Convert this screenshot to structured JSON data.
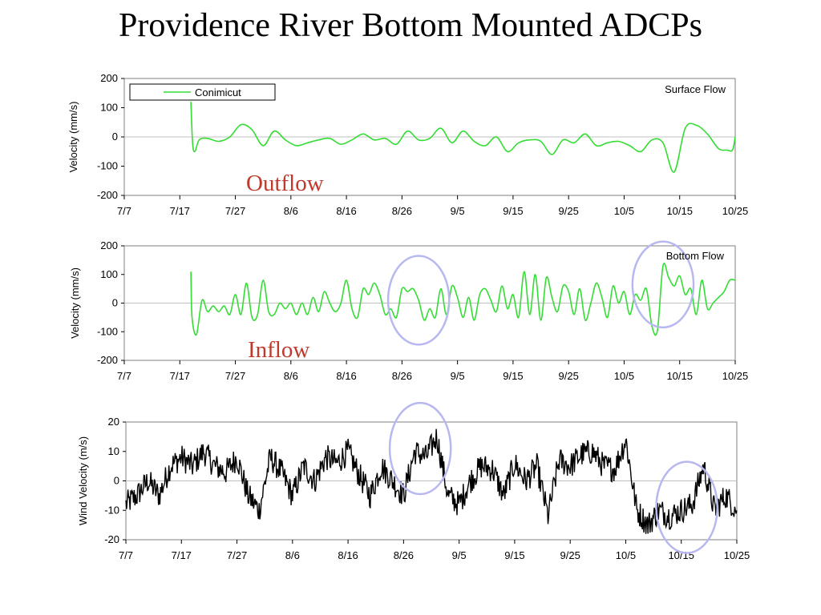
{
  "page": {
    "title": "Providence River Bottom Mounted ADCPs"
  },
  "colors": {
    "current": "#33dd33",
    "wind": "#000000",
    "highlight": "#b8b8f0",
    "label": "#c0392b"
  },
  "chart_data": [
    {
      "id": "surface",
      "type": "line",
      "title": "",
      "xlabel": "",
      "ylabel": "Velocity (mm/s)",
      "x_ticks": [
        "7/7",
        "7/17",
        "7/27",
        "8/6",
        "8/16",
        "8/26",
        "9/5",
        "9/15",
        "9/25",
        "10/5",
        "10/15",
        "10/25"
      ],
      "ylim": [
        -200,
        200
      ],
      "y_ticks": [
        200,
        100,
        0,
        -100,
        -200
      ],
      "corner_note": "Surface Flow",
      "annotation": "Outflow",
      "legend": {
        "entries": [
          "Conimicut"
        ],
        "position": "top-left"
      },
      "series": [
        {
          "name": "Conimicut",
          "x_days": [
            12.0,
            12.3,
            12.7,
            13.5,
            15,
            17,
            19,
            21,
            23,
            25,
            27,
            29,
            31,
            33,
            35,
            37,
            39,
            41,
            43,
            45,
            47,
            49,
            51,
            53,
            55,
            57,
            59,
            61,
            63,
            65,
            67,
            69,
            71,
            73,
            75,
            77,
            79,
            81,
            83,
            85,
            87,
            89,
            91,
            93,
            95,
            97,
            99,
            101,
            103,
            105,
            107,
            108.5,
            109.5,
            110
          ],
          "y": [
            120,
            -20,
            -50,
            -10,
            -5,
            -15,
            0,
            42,
            25,
            -30,
            20,
            -10,
            -30,
            -20,
            -10,
            -5,
            -25,
            -10,
            10,
            -10,
            -5,
            -25,
            20,
            -10,
            -5,
            30,
            -20,
            20,
            -15,
            -30,
            0,
            -50,
            -20,
            -10,
            -15,
            -60,
            -10,
            -20,
            10,
            -30,
            -20,
            -15,
            -30,
            -50,
            -10,
            -20,
            -120,
            30,
            40,
            10,
            -40,
            -45,
            -45,
            0
          ]
        }
      ]
    },
    {
      "id": "bottom",
      "type": "line",
      "title": "",
      "xlabel": "",
      "ylabel": "Velocity (mm/s)",
      "x_ticks": [
        "7/7",
        "7/17",
        "7/27",
        "8/6",
        "8/16",
        "8/26",
        "9/5",
        "9/15",
        "9/25",
        "10/5",
        "10/15",
        "10/25"
      ],
      "ylim": [
        -200,
        200
      ],
      "y_ticks": [
        200,
        100,
        0,
        -100,
        -200
      ],
      "corner_note": "Bottom Flow",
      "annotation": "Inflow",
      "highlights": [
        {
          "x_day": 53,
          "y": 10,
          "rx_day": 5.5,
          "ry": 155
        },
        {
          "x_day": 97,
          "y": 65,
          "rx_day": 5.5,
          "ry": 150
        }
      ],
      "series": [
        {
          "name": "",
          "x_days": [
            12.0,
            12.2,
            13.0,
            14,
            15,
            16,
            17,
            18,
            19,
            20,
            21,
            22,
            23,
            24,
            25,
            26,
            27,
            28,
            29,
            30,
            31,
            32,
            33,
            34,
            35,
            36,
            37,
            38,
            39,
            40,
            41,
            42,
            43,
            44,
            45,
            46,
            47,
            48,
            49,
            50,
            51,
            52,
            53,
            54,
            55,
            56,
            57,
            58,
            59,
            60,
            61,
            62,
            63,
            64,
            65,
            66,
            67,
            68,
            69,
            70,
            71,
            72,
            73,
            74,
            75,
            76,
            77,
            78,
            79,
            80,
            81,
            82,
            83,
            84,
            85,
            86,
            87,
            88,
            89,
            90,
            91,
            92,
            93,
            94,
            95,
            96,
            97,
            98,
            99,
            100,
            101,
            102,
            103,
            104,
            105,
            106,
            107,
            108,
            109,
            110
          ],
          "y": [
            110,
            -50,
            -110,
            10,
            -30,
            -10,
            -30,
            -10,
            -40,
            30,
            -40,
            70,
            -50,
            -40,
            80,
            -30,
            -40,
            0,
            -20,
            0,
            -40,
            0,
            -40,
            20,
            -30,
            40,
            0,
            -30,
            0,
            80,
            -20,
            -50,
            50,
            30,
            70,
            30,
            -40,
            -20,
            -50,
            50,
            40,
            50,
            10,
            -60,
            -20,
            -50,
            50,
            -40,
            60,
            20,
            -50,
            20,
            -60,
            30,
            50,
            10,
            -30,
            60,
            -20,
            30,
            -50,
            110,
            -40,
            100,
            -60,
            90,
            20,
            -30,
            60,
            40,
            -40,
            50,
            -60,
            0,
            70,
            20,
            -50,
            60,
            0,
            40,
            -40,
            30,
            10,
            50,
            -80,
            -95,
            130,
            90,
            60,
            95,
            30,
            50,
            -40,
            80,
            -20,
            0,
            20,
            40,
            80,
            80
          ]
        }
      ]
    },
    {
      "id": "wind",
      "type": "line",
      "title": "",
      "xlabel": "",
      "ylabel": "Wind Velocity (m/s)",
      "x_ticks": [
        "7/7",
        "7/17",
        "7/27",
        "8/6",
        "8/16",
        "8/26",
        "9/5",
        "9/15",
        "9/25",
        "10/5",
        "10/15",
        "10/25"
      ],
      "ylim": [
        -20,
        20
      ],
      "y_ticks": [
        20,
        10,
        0,
        -10,
        -20
      ],
      "highlights": [
        {
          "x_day": 53,
          "y": 11,
          "rx_day": 5.5,
          "ry": 15.5
        },
        {
          "x_day": 101,
          "y": -9,
          "rx_day": 5.5,
          "ry": 15.5
        }
      ],
      "series": [
        {
          "name": "",
          "x_days": [
            0,
            2,
            4,
            6,
            8,
            10,
            12,
            14,
            16,
            18,
            20,
            22,
            24,
            26,
            28,
            30,
            32,
            34,
            36,
            38,
            40,
            42,
            44,
            46,
            48,
            50,
            52,
            54,
            56,
            58,
            60,
            62,
            64,
            66,
            68,
            70,
            72,
            74,
            76,
            78,
            80,
            82,
            84,
            86,
            88,
            90,
            92,
            94,
            96,
            98,
            100,
            102,
            104,
            106,
            108,
            110
          ],
          "y": [
            -8,
            -5,
            0,
            -5,
            5,
            8,
            5,
            10,
            5,
            3,
            8,
            -5,
            -10,
            8,
            3,
            -5,
            5,
            0,
            8,
            6,
            10,
            2,
            -5,
            5,
            0,
            -5,
            10,
            8,
            15,
            -5,
            -8,
            0,
            5,
            4,
            -5,
            6,
            0,
            5,
            -12,
            7,
            5,
            9,
            10,
            5,
            4,
            14,
            -10,
            -15,
            -10,
            -12,
            -10,
            -8,
            5,
            -10,
            -5,
            -10
          ]
        }
      ]
    }
  ]
}
